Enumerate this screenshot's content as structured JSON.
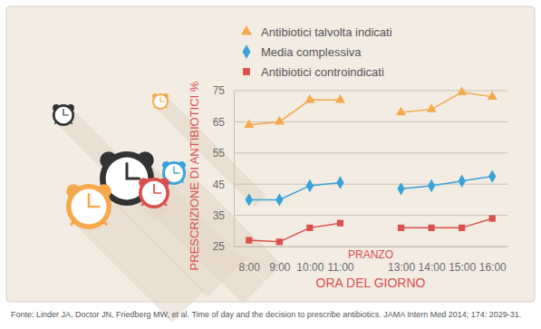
{
  "chart_data": {
    "type": "line",
    "categories": [
      "8:00",
      "9:00",
      "10:00",
      "11:00",
      null,
      "13:00",
      "14:00",
      "15:00",
      "16:00"
    ],
    "series": [
      {
        "name": "Antibiotici talvolta indicati",
        "color": "#f5a94c",
        "marker": "triangle",
        "values": [
          64,
          65,
          72,
          72,
          null,
          68,
          69,
          74.5,
          73
        ]
      },
      {
        "name": "Media complessiva",
        "color": "#3aa3d9",
        "marker": "diamond",
        "values": [
          40,
          40,
          44.5,
          45.5,
          null,
          43.5,
          44.5,
          46,
          47.5
        ]
      },
      {
        "name": "Antibiotici controindicati",
        "color": "#d8514d",
        "marker": "square",
        "values": [
          27,
          26.5,
          31,
          32.5,
          null,
          31,
          31,
          31,
          34
        ]
      }
    ],
    "y_label": "PRESCRIZIONE DI ANTIBIOTICI %",
    "x_label": "ORA DEL GIORNO",
    "annotation": "PRANZO",
    "source": "Fonte: Linder JA, Doctor JN, Friedberg MW, et al. Time of day and the decision to prescribe antibiotics. JAMA Intern Med 2014; 174: 2029-31.",
    "ylim": [
      25,
      75
    ],
    "yticks": [
      25,
      35,
      45,
      55,
      65,
      75
    ],
    "grid": true,
    "legend": "top"
  }
}
